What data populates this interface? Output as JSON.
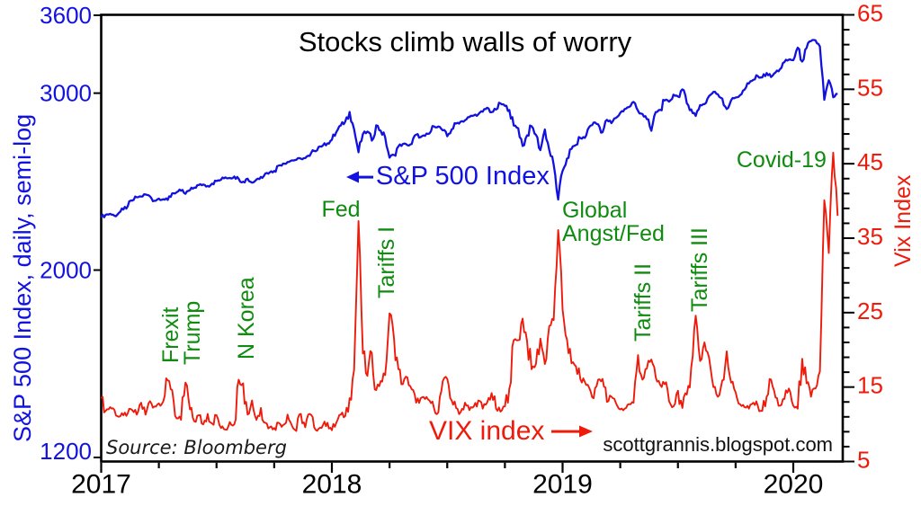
{
  "title": "Stocks climb walls of worry",
  "source_note": "Source: Bloomberg",
  "watermark": "scottgrannis.blogspot.com",
  "chart_data": {
    "type": "line",
    "title": "Stocks climb walls of worry",
    "x_axis": {
      "tick_labels": [
        "2017",
        "2018",
        "2019",
        "2020"
      ],
      "tick_values": [
        2017,
        2018,
        2019,
        2020
      ],
      "minor_tick_interval": 0.25,
      "range": [
        2017,
        2020.215
      ]
    },
    "left_axis": {
      "label": "S&P 500 Index, daily, semi-log",
      "scale": "semi-log",
      "tick_values": [
        3600,
        3000,
        2000,
        1200
      ],
      "color": "#1212e0"
    },
    "right_axis": {
      "label": "Vix Index",
      "scale": "linear",
      "range": [
        5,
        65
      ],
      "tick_values": [
        65,
        55,
        45,
        35,
        25,
        15,
        5
      ],
      "minor_tick_interval": 2,
      "color": "#ee1a0a"
    },
    "series": [
      {
        "name": "S&P 500 Index",
        "axis": "left",
        "color": "#1212e0",
        "x_start": 2017.0,
        "x_step": 0.0192308,
        "values": [
          2258,
          2270,
          2275,
          2265,
          2280,
          2298,
          2316,
          2345,
          2363,
          2367,
          2378,
          2368,
          2344,
          2356,
          2353,
          2349,
          2384,
          2391,
          2399,
          2382,
          2402,
          2416,
          2430,
          2433,
          2425,
          2438,
          2453,
          2460,
          2473,
          2470,
          2478,
          2465,
          2449,
          2466,
          2444,
          2461,
          2476,
          2495,
          2502,
          2510,
          2541,
          2553,
          2562,
          2572,
          2575,
          2582,
          2585,
          2598,
          2628,
          2652,
          2662,
          2674,
          2696,
          2743,
          2786,
          2810,
          2873,
          2762,
          2620,
          2732,
          2747,
          2691,
          2787,
          2752,
          2712,
          2588,
          2604,
          2656,
          2670,
          2663,
          2670,
          2728,
          2713,
          2720,
          2735,
          2780,
          2779,
          2755,
          2718,
          2760,
          2798,
          2810,
          2819,
          2840,
          2851,
          2858,
          2875,
          2901,
          2872,
          2889,
          2930,
          2914,
          2886,
          2785,
          2768,
          2658,
          2723,
          2781,
          2726,
          2633,
          2760,
          2633,
          2546,
          2351,
          2510,
          2582,
          2640,
          2664,
          2707,
          2708,
          2776,
          2804,
          2793,
          2743,
          2822,
          2801,
          2834,
          2867,
          2893,
          2906,
          2940,
          2881,
          2860,
          2826,
          2752,
          2873,
          2887,
          2950,
          2942,
          2990,
          2977,
          3026,
          2932,
          2890,
          2847,
          2919,
          2926,
          2979,
          3008,
          2992,
          2962,
          2893,
          2952,
          2970,
          2986,
          3023,
          3067,
          3093,
          3120,
          3110,
          3141,
          3113,
          3146,
          3169,
          3221,
          3240,
          3235,
          3329,
          3225,
          3328,
          3380,
          3386,
          3338,
          2954,
          3090,
          2972,
          2995
        ]
      },
      {
        "name": "VIX index",
        "axis": "right",
        "color": "#ee1a0a",
        "x_start": 2017.0,
        "x_step": 0.0192308,
        "values": [
          13.5,
          11.8,
          12.3,
          11.9,
          11.0,
          11.2,
          11.5,
          11.9,
          11.3,
          12.9,
          11.3,
          13.1,
          12.4,
          12.8,
          13.1,
          15.9,
          14.6,
          10.8,
          10.6,
          15.6,
          12.0,
          10.4,
          11.2,
          10.0,
          11.4,
          10.1,
          11.2,
          9.5,
          9.3,
          10.3,
          10.0,
          16.0,
          15.5,
          11.3,
          13.2,
          10.6,
          12.2,
          10.2,
          9.6,
          9.5,
          10.2,
          9.9,
          11.3,
          9.8,
          9.1,
          11.4,
          9.6,
          11.4,
          9.6,
          9.4,
          9.9,
          10.2,
          9.2,
          10.2,
          11.3,
          11.1,
          13.5,
          17.3,
          37.3,
          19.5,
          16.5,
          19.6,
          14.6,
          15.8,
          16.6,
          24.9,
          21.5,
          17.4,
          15.4,
          16.3,
          14.7,
          12.9,
          13.5,
          13.4,
          13.2,
          12.2,
          11.6,
          15.8,
          16.1,
          13.2,
          12.2,
          11.6,
          12.9,
          11.9,
          12.4,
          13.2,
          12.1,
          12.9,
          14.2,
          12.1,
          11.7,
          12.4,
          14.8,
          21.3,
          21.3,
          24.2,
          21.2,
          17.4,
          18.1,
          21.5,
          18.1,
          23.2,
          24.0,
          36.1,
          25.4,
          21.4,
          18.2,
          17.8,
          16.1,
          15.7,
          14.9,
          13.5,
          16.0,
          16.1,
          13.0,
          13.7,
          12.9,
          12.0,
          12.1,
          12.7,
          12.9,
          19.3,
          16.0,
          17.5,
          18.7,
          16.3,
          15.3,
          15.4,
          13.1,
          12.4,
          14.5,
          12.2,
          14.0,
          17.6,
          24.6,
          18.5,
          21.0,
          19.0,
          15.0,
          13.7,
          15.9,
          19.8,
          15.6,
          14.3,
          12.7,
          12.3,
          12.1,
          12.9,
          12.5,
          11.8,
          13.7,
          16.0,
          13.6,
          12.5,
          13.4,
          14.8,
          12.5,
          12.1,
          18.8,
          15.5,
          13.7,
          14.8,
          17.1,
          40.1,
          33.0,
          46.5,
          38.0
        ]
      }
    ],
    "series_labels": [
      {
        "text": "S&P 500 Index",
        "arrow": "left",
        "year": 2018.062,
        "level": 2470,
        "axis": "left"
      },
      {
        "text": "VIX index",
        "arrow": "right",
        "year": 2018.421,
        "level": 8.9,
        "axis": "right"
      }
    ],
    "annotations": [
      {
        "text": "Frexit",
        "year": 2017.306,
        "level": 18.2,
        "orientation": "vertical"
      },
      {
        "text": "Trump",
        "year": 2017.4,
        "level": 18.0,
        "orientation": "vertical"
      },
      {
        "text": "N Korea",
        "year": 2017.634,
        "level": 18.7,
        "orientation": "vertical"
      },
      {
        "text": "Fed",
        "year": 2018.039,
        "level": 38.9,
        "orientation": "horizontal",
        "align": "center"
      },
      {
        "text": "Tariffs I",
        "year": 2018.242,
        "level": 26.9,
        "orientation": "vertical"
      },
      {
        "text": "Global\nAngst/Fed",
        "year": 2018.998,
        "level": 40.3,
        "orientation": "horizontal",
        "align": "left"
      },
      {
        "text": "Tariffs II",
        "year": 2019.353,
        "level": 21.1,
        "orientation": "vertical"
      },
      {
        "text": "Tariffs III",
        "year": 2019.599,
        "level": 25.1,
        "orientation": "vertical"
      },
      {
        "text": "Covid-19",
        "year": 2020.144,
        "level": 45.5,
        "orientation": "horizontal",
        "align": "right"
      }
    ]
  }
}
